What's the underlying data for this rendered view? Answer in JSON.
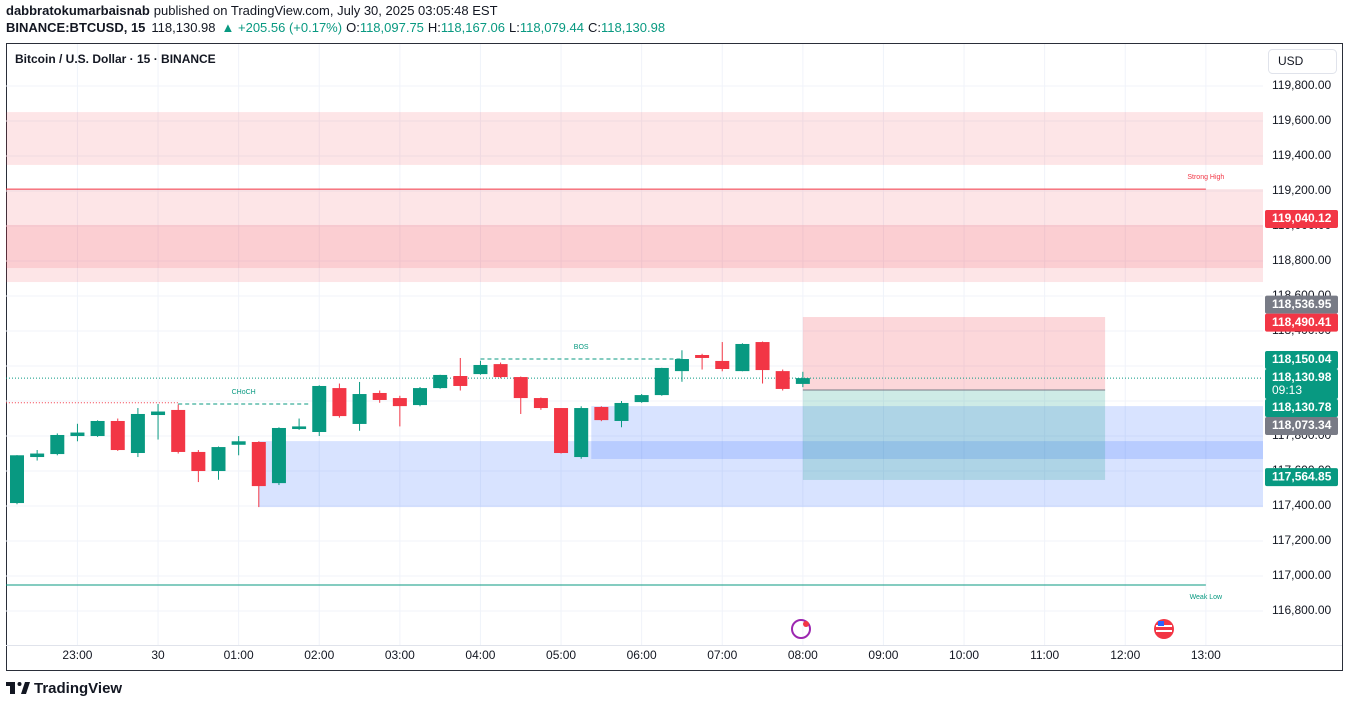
{
  "header": {
    "author": "dabbratokumarbaisnab",
    "published": "published on TradingView.com, July 30, 2025 03:05:48 EST",
    "symbol": "BINANCE:BTCUSD, 15",
    "last": "118,130.98",
    "change": "▲ +205.56 (+0.17%)",
    "ohlc": [
      {
        "key": "O:",
        "value": "118,097.75"
      },
      {
        "key": "H:",
        "value": "118,167.06"
      },
      {
        "key": "L:",
        "value": "118,079.44"
      },
      {
        "key": "C:",
        "value": "118,130.98"
      }
    ]
  },
  "chart_data": {
    "type": "candlestick",
    "title": "Bitcoin / U.S. Dollar · 15 · BINANCE",
    "currency": "USD",
    "categories": [
      null,
      null,
      null,
      "23:00",
      null,
      null,
      null,
      "30",
      null,
      null,
      null,
      "01:00",
      null,
      null,
      null,
      "02:00",
      null,
      null,
      null,
      "03:00",
      null,
      null,
      null,
      "04:00",
      null,
      null,
      null,
      "05:00",
      null,
      null,
      null,
      "06:00",
      null,
      null,
      null,
      "07:00",
      null,
      null,
      null,
      "08:00",
      null,
      null,
      null,
      "09:00",
      null,
      null,
      null,
      "10:00",
      null,
      null,
      null,
      "11:00",
      null,
      null,
      null,
      "12:00",
      null,
      null,
      null,
      "13:00"
    ],
    "open": [
      117417,
      117680,
      117697,
      117800,
      117800,
      117886,
      117703,
      117920,
      117949,
      117709,
      117600,
      117750,
      117766,
      117531,
      117840,
      117823,
      118074,
      117869,
      118046,
      118017,
      117977,
      118074,
      118143,
      118154,
      118211,
      118137,
      118017,
      117960,
      117680,
      117966,
      117886,
      117994,
      118034,
      118171,
      118263,
      118229,
      118171,
      118337,
      118171,
      118097.75,
      null,
      null,
      null,
      null,
      null,
      null,
      null,
      null,
      null,
      null,
      null,
      null,
      null,
      null,
      null,
      null,
      null,
      null,
      null,
      null
    ],
    "high": [
      117691,
      117720,
      117815,
      117870,
      117890,
      117900,
      117960,
      117983,
      117980,
      117720,
      117740,
      117800,
      117770,
      117850,
      117900,
      118090,
      118100,
      118109,
      118060,
      118030,
      118080,
      118150,
      118246,
      118230,
      118220,
      118140,
      118020,
      117960,
      117970,
      117970,
      118000,
      118040,
      118190,
      118290,
      118270,
      118337,
      118330,
      118340,
      118180,
      118167.06,
      null,
      null,
      null,
      null,
      null,
      null,
      null,
      null,
      null,
      null,
      null,
      null,
      null,
      null,
      null,
      null,
      null,
      null,
      null,
      null
    ],
    "low": [
      117410,
      117660,
      117690,
      117770,
      117795,
      117715,
      117680,
      117780,
      117700,
      117537,
      117550,
      117690,
      117394,
      117520,
      117835,
      117800,
      117905,
      117830,
      117990,
      117855,
      117970,
      118070,
      118060,
      118150,
      118130,
      117926,
      117950,
      117700,
      117670,
      117885,
      117850,
      117990,
      118030,
      118110,
      118180,
      118170,
      118170,
      118100,
      118060,
      118079.44,
      null,
      null,
      null,
      null,
      null,
      null,
      null,
      null,
      null,
      null,
      null,
      null,
      null,
      null,
      null,
      null,
      null,
      null,
      null,
      null
    ],
    "close": [
      117690,
      117700,
      117806,
      117820,
      117886,
      117720,
      117926,
      117940,
      117709,
      117600,
      117737,
      117770,
      117514,
      117846,
      117855,
      118086,
      117914,
      118040,
      118006,
      117971,
      118074,
      118149,
      118086,
      118206,
      118137,
      118017,
      117960,
      117703,
      117960,
      117891,
      117989,
      118034,
      118189,
      118240,
      118246,
      118183,
      118326,
      118177,
      118069,
      118130.98,
      null,
      null,
      null,
      null,
      null,
      null,
      null,
      null,
      null,
      null,
      null,
      null,
      null,
      null,
      null,
      null,
      null,
      null,
      null,
      null
    ],
    "up_color": "#089981",
    "down_color": "#f23645",
    "ylim": [
      116606,
      120040
    ],
    "yticks": [
      {
        "value": 116800,
        "label": "116,800.00"
      },
      {
        "value": 117000,
        "label": "117,000.00"
      },
      {
        "value": 117200,
        "label": "117,200.00"
      },
      {
        "value": 117400,
        "label": "117,400.00"
      },
      {
        "value": 117600,
        "label": "117,600.00"
      },
      {
        "value": 117800,
        "label": "117,800.00"
      },
      {
        "value": 118000,
        "label": "118,000.00"
      },
      {
        "value": 118200,
        "label": "118,200.00"
      },
      {
        "value": 118400,
        "label": "118,400.00"
      },
      {
        "value": 118600,
        "label": "118,600.00"
      },
      {
        "value": 118800,
        "label": "118,800.00"
      },
      {
        "value": 119000,
        "label": "119,000.00"
      },
      {
        "value": 119200,
        "label": "119,200.00"
      },
      {
        "value": 119400,
        "label": "119,400.00"
      },
      {
        "value": 119600,
        "label": "119,600.00"
      },
      {
        "value": 119800,
        "label": "119,800.00"
      }
    ],
    "grid": true,
    "zones": [
      {
        "top": 119651,
        "bottom": 119349,
        "start": -1,
        "end": 62,
        "color": "rgba(242,54,69,0.13)"
      },
      {
        "top": 119211,
        "bottom": 118680,
        "start": -1,
        "end": 62,
        "color": "rgba(242,54,69,0.13)"
      },
      {
        "top": 119006,
        "bottom": 118760,
        "start": -1,
        "end": 62,
        "color": "rgba(242,54,69,0.13)"
      },
      {
        "top": 117771,
        "bottom": 117394,
        "start": 12,
        "end": 62,
        "color": "rgba(41,98,255,0.18)"
      },
      {
        "top": 117971,
        "bottom": 117669,
        "start": 28.5,
        "end": 62,
        "color": "rgba(41,98,255,0.18)"
      },
      {
        "top": 118480,
        "bottom": 118063,
        "start": 39,
        "end": 54,
        "color": "rgba(242,54,69,0.2)"
      },
      {
        "top": 118063,
        "bottom": 117549,
        "start": 39,
        "end": 54,
        "color": "rgba(8,153,129,0.2)"
      }
    ],
    "lines": [
      {
        "value": 119211,
        "start": -1,
        "end": 59,
        "color": "#f23645",
        "dash": "",
        "label": "Strong High",
        "label_at": "end",
        "label_side": "above"
      },
      {
        "value": 116949,
        "start": -1,
        "end": 59,
        "color": "#089981",
        "dash": "",
        "label": "Weak Low",
        "label_at": "end",
        "label_side": "below"
      },
      {
        "value": 117983,
        "start": 8,
        "end": 14.5,
        "color": "#089981",
        "dash": "4 3",
        "label": "CHoCH",
        "label_at": "middle",
        "label_side": "above"
      },
      {
        "value": 117990,
        "start": -1,
        "end": 8,
        "color": "#f23645",
        "dash": "1 2"
      },
      {
        "value": 118240,
        "start": 23,
        "end": 33,
        "color": "#089981",
        "dash": "4 3",
        "label": "BOS",
        "label_at": "middle",
        "label_side": "above"
      },
      {
        "value": 118063,
        "start": 39,
        "end": 54,
        "color": "#787b86",
        "dash": ""
      }
    ],
    "price_labels": [
      {
        "value": 119040.12,
        "label": "119,040.12",
        "color": "#f23645"
      },
      {
        "value": 118536.95,
        "label": "118,536.95",
        "color": "#787b86"
      },
      {
        "value": 118490.41,
        "label": "118,490.41",
        "color": "#f23645"
      },
      {
        "value": 118150.04,
        "label": "118,150.04",
        "color": "#089981"
      },
      {
        "value": 118130.98,
        "label": "118,130.98",
        "color": "#089981",
        "countdown": "09:13"
      },
      {
        "value": 118130.78,
        "label": "118,130.78",
        "color": "#089981"
      },
      {
        "value": 118073.34,
        "label": "118,073.34",
        "color": "#787b86"
      },
      {
        "value": 117564.85,
        "label": "117,564.85",
        "color": "#089981"
      }
    ]
  },
  "footer": {
    "brand": "TradingView"
  }
}
